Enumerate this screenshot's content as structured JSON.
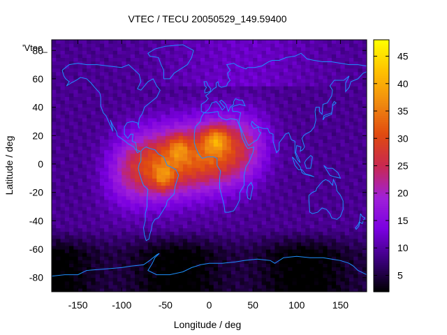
{
  "chart_data": {
    "type": "heatmap",
    "title": "VTEC / TECU 20050529_149.59400",
    "xlabel": "Longitude / deg",
    "ylabel": "Latitude / deg",
    "key_label": "'Vtec_",
    "xlim": [
      -180,
      180
    ],
    "ylim": [
      -90,
      87.5
    ],
    "xticks": [
      -150,
      -100,
      -50,
      0,
      50,
      100,
      150
    ],
    "yticks": [
      -80,
      -60,
      -40,
      -20,
      0,
      20,
      40,
      60,
      80
    ],
    "colorbar": {
      "range": [
        2,
        48
      ],
      "ticks": [
        5,
        10,
        15,
        20,
        25,
        30,
        35,
        40,
        45
      ],
      "palette": [
        "#000000",
        "#3a007a",
        "#7a00e0",
        "#a020d8",
        "#c82850",
        "#e04a10",
        "#f08a10",
        "#ffc000",
        "#ffff00"
      ]
    },
    "grid": {
      "dlon": 5,
      "dlat": 2.5
    },
    "enhancement_peaks": [
      {
        "lon": 8,
        "lat": 18,
        "vtec": 44
      },
      {
        "lon": -52,
        "lat": -10,
        "vtec": 41
      },
      {
        "lon": -35,
        "lat": 12,
        "vtec": 40
      }
    ],
    "background_vtec": 9,
    "southern_polar_vtec": 3,
    "coastline_color": "#1e90ff"
  }
}
